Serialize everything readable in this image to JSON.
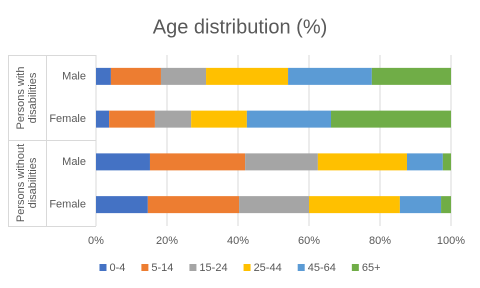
{
  "chart_data": {
    "type": "stacked_bar_100",
    "title": "Age distribution (%)",
    "groups": [
      {
        "label": "Persons with disabilities",
        "categories": [
          "Male",
          "Female"
        ]
      },
      {
        "label": "Persons without disabilities",
        "categories": [
          "Male",
          "Female"
        ]
      }
    ],
    "series": [
      {
        "name": "0-4",
        "color": "#4472c4",
        "values": [
          4.2,
          3.7,
          15.2,
          14.6
        ]
      },
      {
        "name": "5-14",
        "color": "#ed7d31",
        "values": [
          14.1,
          12.9,
          26.8,
          25.7
        ]
      },
      {
        "name": "15-24",
        "color": "#a5a5a5",
        "values": [
          12.7,
          10.2,
          20.5,
          19.7
        ]
      },
      {
        "name": "25-44",
        "color": "#ffc000",
        "values": [
          23.1,
          15.7,
          25.1,
          25.6
        ]
      },
      {
        "name": "45-64",
        "color": "#5b9bd5",
        "values": [
          23.6,
          23.7,
          10.1,
          11.6
        ]
      },
      {
        "name": "65+",
        "color": "#70ad47",
        "values": [
          22.3,
          33.8,
          2.3,
          2.8
        ]
      }
    ],
    "xlim": [
      0,
      100
    ],
    "xticks": [
      {
        "value": 0,
        "label": "0%"
      },
      {
        "value": 20,
        "label": "20%"
      },
      {
        "value": 40,
        "label": "40%"
      },
      {
        "value": 60,
        "label": "60%"
      },
      {
        "value": 80,
        "label": "80%"
      },
      {
        "value": 100,
        "label": "100%"
      }
    ],
    "grid": true,
    "legend": "bottom"
  }
}
